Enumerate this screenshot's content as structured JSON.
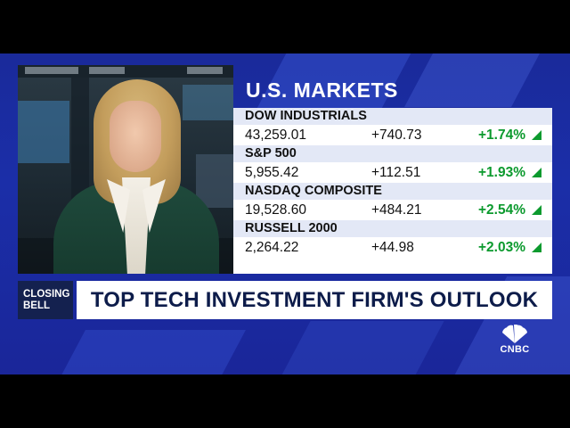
{
  "markets": {
    "title": "U.S. MARKETS",
    "indices": [
      {
        "name": "DOW INDUSTRIALS",
        "value": "43,259.01",
        "change": "+740.73",
        "percent": "+1.74%"
      },
      {
        "name": "S&P 500",
        "value": "5,955.42",
        "change": "+112.51",
        "percent": "+1.93%"
      },
      {
        "name": "NASDAQ COMPOSITE",
        "value": "19,528.60",
        "change": "+484.21",
        "percent": "+2.54%"
      },
      {
        "name": "RUSSELL 2000",
        "value": "2,264.22",
        "change": "+44.98",
        "percent": "+2.03%"
      }
    ],
    "up_color": "#0c9a2e"
  },
  "lower_third": {
    "show": "CLOSING\nBELL",
    "headline": "TOP TECH INVESTMENT FIRM'S OUTLOOK"
  },
  "logo": {
    "wordmark": "CNBC",
    "icon": "peacock-icon"
  },
  "colors": {
    "background_blue": "#1b2ea8",
    "show_tag": "#14214f",
    "headline_text": "#0d1c4a"
  }
}
